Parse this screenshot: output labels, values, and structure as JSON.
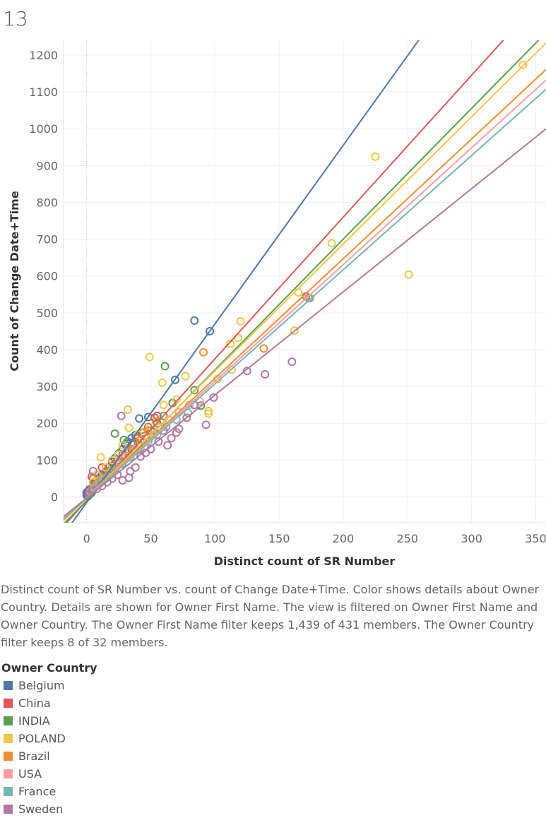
{
  "page_number": "13",
  "caption": "Distinct count of SR Number vs. count of Change Date+Time.  Color shows details about Owner Country.  Details are shown for Owner First Name. The view is filtered on Owner First Name and Owner Country. The Owner First Name filter keeps 1,439 of 431 members. The Owner Country filter keeps 8 of 32 members.",
  "legend": {
    "title": "Owner Country",
    "items": [
      {
        "label": "Belgium",
        "color": "#4e79a7"
      },
      {
        "label": "China",
        "color": "#e15759"
      },
      {
        "label": "INDIA",
        "color": "#59a14f"
      },
      {
        "label": "POLAND",
        "color": "#edc948"
      },
      {
        "label": "Brazil",
        "color": "#f28e2b"
      },
      {
        "label": "USA",
        "color": "#ff9da7"
      },
      {
        "label": "France",
        "color": "#76b7b2"
      },
      {
        "label": "Sweden",
        "color": "#b07aa1"
      }
    ]
  },
  "chart_data": {
    "type": "scatter",
    "xlabel": "Distinct count of SR Number",
    "ylabel": "Count of Change Date+Time",
    "xlim": [
      -18,
      358
    ],
    "ylim": [
      -70,
      1240
    ],
    "x_ticks": [
      0,
      50,
      100,
      150,
      200,
      250,
      300,
      350
    ],
    "y_ticks": [
      0,
      100,
      200,
      300,
      400,
      500,
      600,
      700,
      800,
      900,
      1000,
      1100,
      1200
    ],
    "grid": true,
    "legend_position": "bottom",
    "trend_lines": true,
    "series": [
      {
        "name": "Belgium",
        "color": "#4e79a7",
        "trend": {
          "slope": 4.85,
          "intercept": -15
        },
        "points": [
          [
            84,
            479
          ],
          [
            96,
            450
          ],
          [
            69,
            318
          ],
          [
            48,
            217
          ],
          [
            41,
            213
          ],
          [
            38,
            168
          ],
          [
            35,
            160
          ],
          [
            32,
            150
          ],
          [
            30,
            143
          ],
          [
            28,
            130
          ],
          [
            25,
            118
          ],
          [
            22,
            105
          ],
          [
            20,
            95
          ],
          [
            18,
            82
          ],
          [
            15,
            70
          ],
          [
            12,
            60
          ],
          [
            10,
            52
          ],
          [
            8,
            42
          ],
          [
            6,
            35
          ],
          [
            5,
            28
          ],
          [
            4,
            22
          ],
          [
            3,
            18
          ],
          [
            2,
            14
          ],
          [
            1,
            10
          ],
          [
            0,
            5
          ],
          [
            1,
            2
          ],
          [
            2,
            6
          ],
          [
            3,
            9
          ],
          [
            4,
            12
          ],
          [
            0,
            12
          ],
          [
            1,
            15
          ],
          [
            2,
            20
          ]
        ]
      },
      {
        "name": "China",
        "color": "#e15759",
        "trend": {
          "slope": 3.85,
          "intercept": -10
        },
        "points": [
          [
            53,
            215
          ],
          [
            55,
            220
          ],
          [
            48,
            190
          ],
          [
            44,
            175
          ],
          [
            40,
            160
          ],
          [
            36,
            145
          ],
          [
            32,
            130
          ],
          [
            28,
            115
          ],
          [
            24,
            100
          ],
          [
            20,
            85
          ],
          [
            16,
            70
          ],
          [
            13,
            58
          ],
          [
            10,
            45
          ],
          [
            8,
            38
          ],
          [
            6,
            30
          ],
          [
            4,
            55
          ],
          [
            5,
            50
          ],
          [
            12,
            80
          ],
          [
            3,
            18
          ],
          [
            2,
            12
          ]
        ]
      },
      {
        "name": "INDIA",
        "color": "#59a14f",
        "trend": {
          "slope": 3.55,
          "intercept": -10
        },
        "points": [
          [
            61,
            355
          ],
          [
            22,
            172
          ],
          [
            29,
            155
          ],
          [
            84,
            290
          ],
          [
            89,
            248
          ],
          [
            67,
            255
          ],
          [
            60,
            220
          ],
          [
            55,
            200
          ],
          [
            50,
            180
          ],
          [
            45,
            165
          ],
          [
            40,
            145
          ],
          [
            35,
            130
          ],
          [
            30,
            110
          ],
          [
            25,
            95
          ],
          [
            20,
            75
          ],
          [
            15,
            60
          ],
          [
            10,
            45
          ],
          [
            7,
            35
          ],
          [
            5,
            25
          ],
          [
            3,
            15
          ],
          [
            12,
            50
          ],
          [
            18,
            65
          ]
        ]
      },
      {
        "name": "POLAND",
        "color": "#edc948",
        "trend": {
          "slope": 3.45,
          "intercept": -3
        },
        "points": [
          [
            340,
            1173
          ],
          [
            225,
            924
          ],
          [
            191,
            689
          ],
          [
            251,
            604
          ],
          [
            165,
            555
          ],
          [
            162,
            452
          ],
          [
            120,
            477
          ],
          [
            118,
            432
          ],
          [
            112,
            416
          ],
          [
            113,
            345
          ],
          [
            95,
            233
          ],
          [
            95,
            226
          ],
          [
            49,
            380
          ],
          [
            59,
            310
          ],
          [
            32,
            237
          ],
          [
            77,
            328
          ],
          [
            60,
            250
          ],
          [
            45,
            190
          ],
          [
            40,
            170
          ],
          [
            33,
            188
          ],
          [
            28,
            140
          ],
          [
            25,
            115
          ],
          [
            20,
            100
          ],
          [
            15,
            80
          ],
          [
            11,
            108
          ],
          [
            8,
            60
          ],
          [
            5,
            40
          ],
          [
            70,
            265
          ],
          [
            102,
            320
          ]
        ]
      },
      {
        "name": "Brazil",
        "color": "#f28e2b",
        "trend": {
          "slope": 3.25,
          "intercept": -3
        },
        "points": [
          [
            91,
            393
          ],
          [
            138,
            403
          ],
          [
            173,
            540
          ],
          [
            54,
            205
          ],
          [
            48,
            180
          ],
          [
            42,
            155
          ],
          [
            36,
            130
          ],
          [
            30,
            110
          ],
          [
            24,
            90
          ],
          [
            18,
            70
          ],
          [
            12,
            50
          ],
          [
            8,
            35
          ],
          [
            5,
            22
          ]
        ]
      },
      {
        "name": "USA",
        "color": "#ff9da7",
        "trend": {
          "slope": 3.17,
          "intercept": -3
        },
        "points": [
          [
            88,
            260
          ],
          [
            80,
            250
          ],
          [
            72,
            230
          ],
          [
            64,
            210
          ],
          [
            56,
            190
          ],
          [
            50,
            170
          ],
          [
            44,
            150
          ],
          [
            38,
            130
          ],
          [
            32,
            110
          ],
          [
            26,
            90
          ],
          [
            20,
            70
          ],
          [
            14,
            50
          ],
          [
            10,
            38
          ],
          [
            6,
            25
          ],
          [
            3,
            15
          ]
        ]
      },
      {
        "name": "France",
        "color": "#76b7b2",
        "trend": {
          "slope": 3.1,
          "intercept": -3
        },
        "points": [
          [
            174,
            540
          ],
          [
            79,
            228
          ],
          [
            70,
            210
          ],
          [
            62,
            190
          ],
          [
            55,
            170
          ],
          [
            48,
            150
          ],
          [
            40,
            128
          ],
          [
            34,
            108
          ],
          [
            28,
            90
          ],
          [
            22,
            72
          ],
          [
            16,
            55
          ],
          [
            11,
            40
          ],
          [
            7,
            28
          ],
          [
            4,
            18
          ]
        ]
      },
      {
        "name": "Sweden",
        "color": "#b07aa1",
        "trend": {
          "slope": 2.8,
          "intercept": -3
        },
        "points": [
          [
            171,
            545
          ],
          [
            160,
            367
          ],
          [
            139,
            333
          ],
          [
            125,
            342
          ],
          [
            99,
            270
          ],
          [
            93,
            196
          ],
          [
            84,
            250
          ],
          [
            78,
            215
          ],
          [
            72,
            185
          ],
          [
            70,
            175
          ],
          [
            66,
            160
          ],
          [
            63,
            140
          ],
          [
            60,
            180
          ],
          [
            56,
            150
          ],
          [
            50,
            130
          ],
          [
            46,
            120
          ],
          [
            42,
            110
          ],
          [
            38,
            80
          ],
          [
            34,
            70
          ],
          [
            33,
            52
          ],
          [
            28,
            45
          ],
          [
            27,
            220
          ],
          [
            24,
            60
          ],
          [
            20,
            50
          ],
          [
            16,
            40
          ],
          [
            12,
            30
          ],
          [
            8,
            22
          ],
          [
            5,
            70
          ],
          [
            4,
            15
          ],
          [
            2,
            8
          ]
        ]
      }
    ]
  }
}
